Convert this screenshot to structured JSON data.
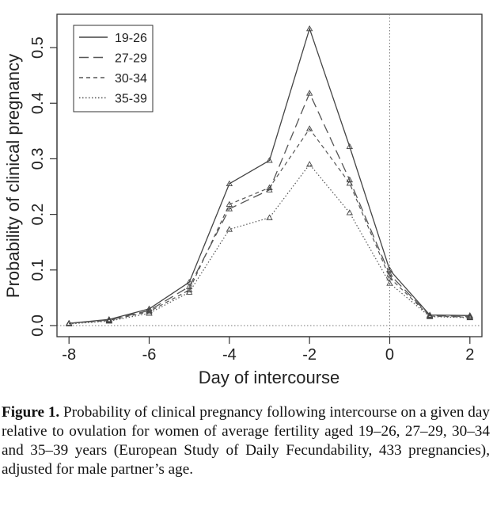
{
  "chart_data": {
    "type": "line",
    "xlabel": "Day of intercourse",
    "ylabel": "Probability of clinical pregnancy",
    "xlim": [
      -8.3,
      2.3
    ],
    "ylim": [
      -0.02,
      0.56
    ],
    "xticks": [
      "-8",
      "-6",
      "-4",
      "-2",
      "0",
      "2"
    ],
    "yticks": [
      "0.0",
      "0.1",
      "0.2",
      "0.3",
      "0.4",
      "0.5"
    ],
    "grid": false,
    "legend_position": "top-left",
    "reference_lines": {
      "vertical_x": 0,
      "horizontal_y": 0
    },
    "x": [
      -8,
      -7,
      -6,
      -5,
      -4,
      -3,
      -2,
      -1,
      0,
      1,
      2
    ],
    "series": [
      {
        "name": "19-26",
        "style": "solid",
        "values": [
          0.004,
          0.011,
          0.03,
          0.078,
          0.255,
          0.297,
          0.534,
          0.322,
          0.1,
          0.019,
          0.018
        ]
      },
      {
        "name": "27-29",
        "style": "long-dash",
        "values": [
          0.004,
          0.01,
          0.027,
          0.07,
          0.21,
          0.244,
          0.418,
          0.262,
          0.092,
          0.018,
          0.016
        ]
      },
      {
        "name": "30-34",
        "style": "short-dash",
        "values": [
          0.004,
          0.009,
          0.025,
          0.064,
          0.218,
          0.248,
          0.354,
          0.256,
          0.086,
          0.017,
          0.015
        ]
      },
      {
        "name": "35-39",
        "style": "dotted",
        "values": [
          0.003,
          0.008,
          0.022,
          0.06,
          0.173,
          0.194,
          0.29,
          0.203,
          0.076,
          0.016,
          0.014
        ]
      }
    ]
  },
  "caption": {
    "label": "Figure 1.",
    "text": " Probability of clinical pregnancy following intercourse on a given day relative to ovulation for women of average fertility aged 19–26, 27–29, 30–34 and 35–39 years (European Study of Daily Fecundability, 433 pregnancies), adjusted for male partner’s age."
  }
}
